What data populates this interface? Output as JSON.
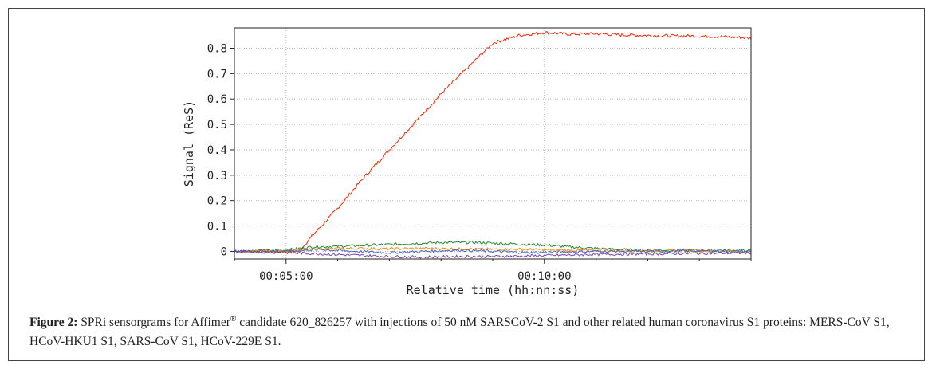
{
  "chart_data": {
    "type": "line",
    "xlabel": "Relative time (hh:nn:ss)",
    "ylabel": "Signal (ReS)",
    "xlim": [
      240,
      840
    ],
    "ylim": [
      -0.03,
      0.88
    ],
    "x_ticks": [
      {
        "value": 300,
        "label": "00:05:00"
      },
      {
        "value": 600,
        "label": "00:10:00"
      }
    ],
    "y_ticks": [
      {
        "value": 0,
        "label": "0"
      },
      {
        "value": 0.1,
        "label": "0.1"
      },
      {
        "value": 0.2,
        "label": "0.2"
      },
      {
        "value": 0.3,
        "label": "0.3"
      },
      {
        "value": 0.4,
        "label": "0.4"
      },
      {
        "value": 0.5,
        "label": "0.5"
      },
      {
        "value": 0.6,
        "label": "0.6"
      },
      {
        "value": 0.7,
        "label": "0.7"
      },
      {
        "value": 0.8,
        "label": "0.8"
      }
    ],
    "grid": true,
    "series": [
      {
        "color": "#ff2200",
        "points": [
          [
            240,
            0.0
          ],
          [
            290,
            0.0
          ],
          [
            315,
            0.0
          ],
          [
            330,
            0.06
          ],
          [
            360,
            0.17
          ],
          [
            390,
            0.29
          ],
          [
            420,
            0.4
          ],
          [
            450,
            0.51
          ],
          [
            480,
            0.62
          ],
          [
            510,
            0.72
          ],
          [
            540,
            0.82
          ],
          [
            570,
            0.85
          ],
          [
            600,
            0.862
          ],
          [
            630,
            0.855
          ],
          [
            660,
            0.857
          ],
          [
            690,
            0.852
          ],
          [
            720,
            0.85
          ],
          [
            750,
            0.848
          ],
          [
            780,
            0.848
          ],
          [
            810,
            0.845
          ],
          [
            840,
            0.84
          ]
        ]
      },
      {
        "color": "#228833",
        "points": [
          [
            240,
            0.0
          ],
          [
            300,
            0.005
          ],
          [
            330,
            0.018
          ],
          [
            360,
            0.02
          ],
          [
            400,
            0.025
          ],
          [
            440,
            0.03
          ],
          [
            480,
            0.035
          ],
          [
            520,
            0.035
          ],
          [
            560,
            0.03
          ],
          [
            600,
            0.025
          ],
          [
            640,
            0.015
          ],
          [
            680,
            0.008
          ],
          [
            720,
            0.005
          ],
          [
            780,
            0.005
          ],
          [
            840,
            0.003
          ]
        ]
      },
      {
        "color": "#ff8800",
        "points": [
          [
            240,
            0.0
          ],
          [
            300,
            0.0
          ],
          [
            340,
            0.01
          ],
          [
            380,
            0.012
          ],
          [
            420,
            0.01
          ],
          [
            460,
            0.012
          ],
          [
            500,
            0.01
          ],
          [
            540,
            0.008
          ],
          [
            580,
            0.008
          ],
          [
            620,
            0.005
          ],
          [
            660,
            0.003
          ],
          [
            720,
            0.002
          ],
          [
            780,
            0.002
          ],
          [
            840,
            0.0
          ]
        ]
      },
      {
        "color": "#4466cc",
        "points": [
          [
            240,
            0.0
          ],
          [
            300,
            0.0
          ],
          [
            340,
            0.008
          ],
          [
            380,
            0.0
          ],
          [
            420,
            -0.005
          ],
          [
            460,
            0.0
          ],
          [
            500,
            0.005
          ],
          [
            540,
            0.0
          ],
          [
            580,
            -0.005
          ],
          [
            620,
            -0.002
          ],
          [
            660,
            0.0
          ],
          [
            720,
            0.0
          ],
          [
            780,
            0.002
          ],
          [
            840,
            0.0
          ]
        ]
      },
      {
        "color": "#7744aa",
        "points": [
          [
            240,
            0.0
          ],
          [
            300,
            -0.005
          ],
          [
            340,
            -0.01
          ],
          [
            380,
            -0.015
          ],
          [
            420,
            -0.02
          ],
          [
            460,
            -0.022
          ],
          [
            500,
            -0.02
          ],
          [
            540,
            -0.02
          ],
          [
            580,
            -0.018
          ],
          [
            620,
            -0.015
          ],
          [
            660,
            -0.012
          ],
          [
            720,
            -0.01
          ],
          [
            780,
            -0.008
          ],
          [
            840,
            -0.006
          ]
        ]
      }
    ]
  },
  "caption": {
    "label": "Figure 2:",
    "text_before": " SPRi sensorgrams for Affimer",
    "superscript": "®",
    "text_after": " candidate 620_826257 with injections of 50 nM SARSCoV-2 S1 and other related human coronavirus S1 proteins: MERS-CoV S1, HCoV-HKU1 S1, SARS-CoV S1, HCoV-229E S1."
  }
}
